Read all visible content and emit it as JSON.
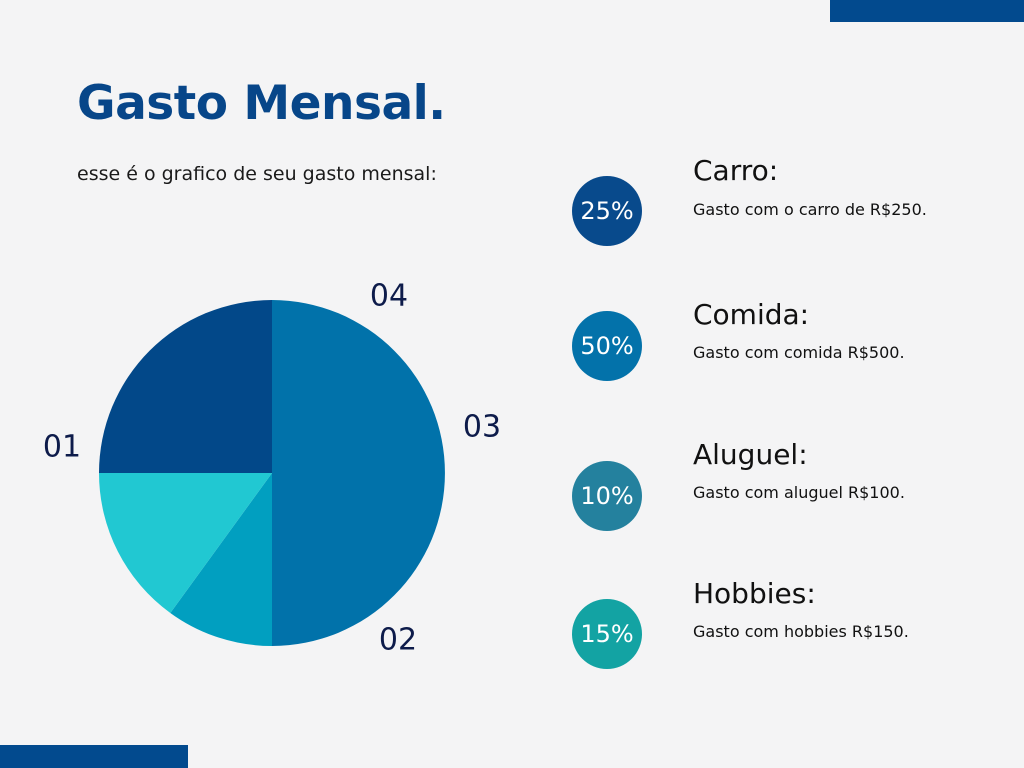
{
  "title": "Gasto Mensal.",
  "subtitle": "esse é o grafico de seu gasto mensal:",
  "chart_data": {
    "type": "pie",
    "categories": [
      "01",
      "02",
      "03",
      "04"
    ],
    "values": [
      25,
      50,
      10,
      15
    ],
    "colors": [
      "#024889",
      "#0172aa",
      "#019fc0",
      "#21c8d2"
    ],
    "legend_placement": "right"
  },
  "legend": [
    {
      "percent": "25%",
      "title": "Carro:",
      "desc": "Gasto com o carro de R$250.",
      "color": "#084a8c"
    },
    {
      "percent": "50%",
      "title": "Comida:",
      "desc": "Gasto com comida R$500.",
      "color": "#0372aa"
    },
    {
      "percent": "10%",
      "title": "Aluguel:",
      "desc": "Gasto com aluguel R$100.",
      "color": "#24819e"
    },
    {
      "percent": "15%",
      "title": "Hobbies:",
      "desc": "Gasto com hobbies R$150.",
      "color": "#13a3a3"
    }
  ]
}
